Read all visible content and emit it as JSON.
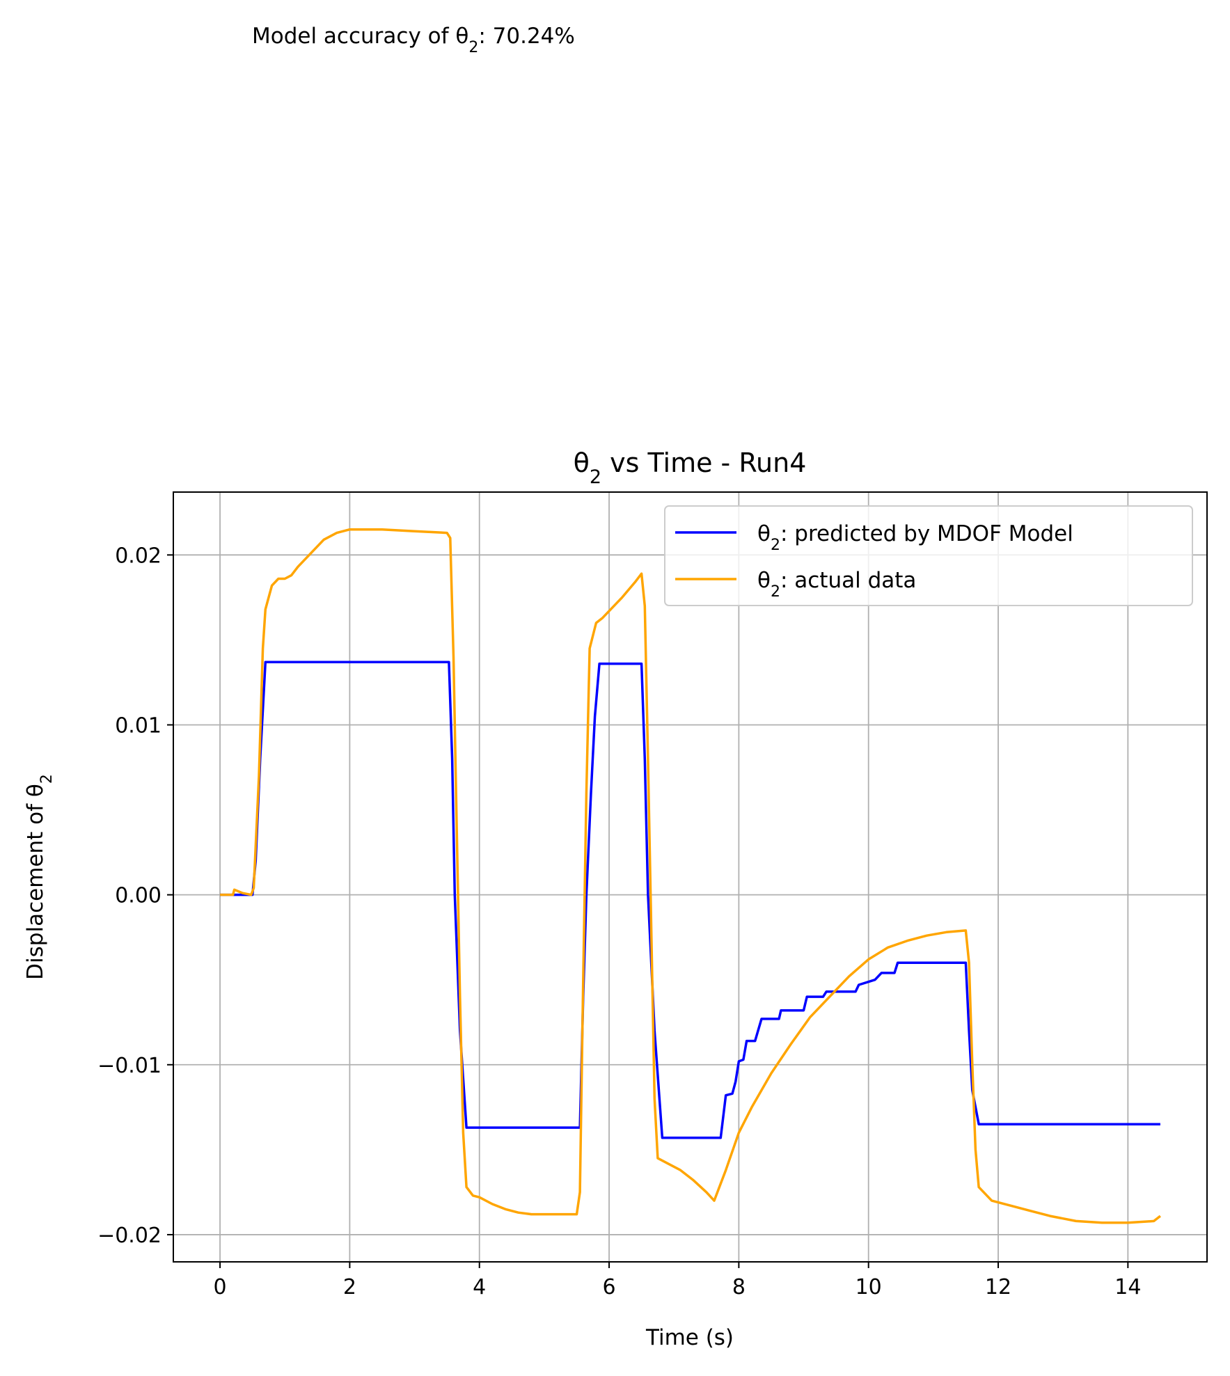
{
  "chart_data": {
    "type": "line",
    "title_prefix": "θ",
    "title_sub": "2",
    "title_suffix": " vs Time - Run4",
    "annotation_prefix": "Model accuracy of θ",
    "annotation_sub": "2",
    "annotation_suffix": ": 70.24%",
    "xlabel": "Time (s)",
    "ylabel_prefix": "Displacement of θ",
    "ylabel_sub": "2",
    "xlim": [
      -0.72,
      15.22
    ],
    "ylim": [
      -0.0216,
      0.0237
    ],
    "xticks": [
      0,
      2,
      4,
      6,
      8,
      10,
      12,
      14
    ],
    "xtick_labels": [
      "0",
      "2",
      "4",
      "6",
      "8",
      "10",
      "12",
      "14"
    ],
    "yticks": [
      -0.02,
      -0.01,
      0.0,
      0.01,
      0.02
    ],
    "ytick_labels": [
      "−0.02",
      "−0.01",
      "0.00",
      "0.01",
      "0.02"
    ],
    "grid": true,
    "legend_position": "upper-right",
    "series": [
      {
        "name_prefix": "θ",
        "name_sub": "2",
        "name_suffix": ": predicted by MDOF Model",
        "color": "#0000ff",
        "points": [
          [
            0,
            0
          ],
          [
            0.5,
            0
          ],
          [
            0.55,
            0.002
          ],
          [
            0.62,
            0.008
          ],
          [
            0.7,
            0.0137
          ],
          [
            3.53,
            0.0137
          ],
          [
            3.58,
            0.008
          ],
          [
            3.62,
            0
          ],
          [
            3.7,
            -0.008
          ],
          [
            3.8,
            -0.0137
          ],
          [
            5.55,
            -0.0137
          ],
          [
            5.6,
            -0.006
          ],
          [
            5.65,
            0
          ],
          [
            5.72,
            0.006
          ],
          [
            5.78,
            0.0105
          ],
          [
            5.85,
            0.0136
          ],
          [
            6.5,
            0.0136
          ],
          [
            6.55,
            0.008
          ],
          [
            6.6,
            0
          ],
          [
            6.7,
            -0.008
          ],
          [
            6.82,
            -0.0143
          ],
          [
            7.72,
            -0.0143
          ],
          [
            7.8,
            -0.0118
          ],
          [
            7.9,
            -0.0117
          ],
          [
            7.95,
            -0.011
          ],
          [
            8.0,
            -0.0098
          ],
          [
            8.07,
            -0.0097
          ],
          [
            8.12,
            -0.0086
          ],
          [
            8.25,
            -0.0086
          ],
          [
            8.35,
            -0.0073
          ],
          [
            8.62,
            -0.0073
          ],
          [
            8.65,
            -0.0068
          ],
          [
            9.0,
            -0.0068
          ],
          [
            9.05,
            -0.006
          ],
          [
            9.3,
            -0.006
          ],
          [
            9.35,
            -0.0057
          ],
          [
            9.8,
            -0.0057
          ],
          [
            9.85,
            -0.0053
          ],
          [
            10.1,
            -0.005
          ],
          [
            10.2,
            -0.0046
          ],
          [
            10.4,
            -0.0046
          ],
          [
            10.45,
            -0.004
          ],
          [
            11.5,
            -0.004
          ],
          [
            11.55,
            -0.008
          ],
          [
            11.6,
            -0.0115
          ],
          [
            11.7,
            -0.0135
          ],
          [
            14.5,
            -0.0135
          ]
        ]
      },
      {
        "name_prefix": "θ",
        "name_sub": "2",
        "name_suffix": ": actual data",
        "color": "#ffa500",
        "points": [
          [
            0,
            0
          ],
          [
            0.2,
            0
          ],
          [
            0.22,
            0.0003
          ],
          [
            0.35,
            0.0001
          ],
          [
            0.48,
            0
          ],
          [
            0.52,
            0.0004
          ],
          [
            0.6,
            0.007
          ],
          [
            0.66,
            0.0145
          ],
          [
            0.7,
            0.0168
          ],
          [
            0.8,
            0.0182
          ],
          [
            0.9,
            0.0186
          ],
          [
            1.0,
            0.0186
          ],
          [
            1.1,
            0.0188
          ],
          [
            1.2,
            0.0193
          ],
          [
            1.4,
            0.0201
          ],
          [
            1.6,
            0.0209
          ],
          [
            1.8,
            0.0213
          ],
          [
            2.0,
            0.0215
          ],
          [
            2.5,
            0.0215
          ],
          [
            3.0,
            0.0214
          ],
          [
            3.5,
            0.0213
          ],
          [
            3.55,
            0.021
          ],
          [
            3.6,
            0.014
          ],
          [
            3.65,
            0.004
          ],
          [
            3.7,
            -0.006
          ],
          [
            3.75,
            -0.014
          ],
          [
            3.8,
            -0.0172
          ],
          [
            3.9,
            -0.0177
          ],
          [
            4.0,
            -0.0178
          ],
          [
            4.2,
            -0.0182
          ],
          [
            4.4,
            -0.0185
          ],
          [
            4.6,
            -0.0187
          ],
          [
            4.8,
            -0.0188
          ],
          [
            5.5,
            -0.0188
          ],
          [
            5.55,
            -0.0175
          ],
          [
            5.6,
            -0.005
          ],
          [
            5.65,
            0.006
          ],
          [
            5.7,
            0.0145
          ],
          [
            5.8,
            0.016
          ],
          [
            5.9,
            0.0163
          ],
          [
            6.0,
            0.0167
          ],
          [
            6.2,
            0.0175
          ],
          [
            6.4,
            0.0184
          ],
          [
            6.5,
            0.0189
          ],
          [
            6.55,
            0.017
          ],
          [
            6.6,
            0.008
          ],
          [
            6.65,
            -0.002
          ],
          [
            6.7,
            -0.012
          ],
          [
            6.75,
            -0.0155
          ],
          [
            6.9,
            -0.0158
          ],
          [
            7.1,
            -0.0162
          ],
          [
            7.3,
            -0.0168
          ],
          [
            7.5,
            -0.0175
          ],
          [
            7.62,
            -0.018
          ],
          [
            7.7,
            -0.0172
          ],
          [
            7.8,
            -0.0162
          ],
          [
            8.0,
            -0.014
          ],
          [
            8.2,
            -0.0125
          ],
          [
            8.5,
            -0.0105
          ],
          [
            8.8,
            -0.0088
          ],
          [
            9.1,
            -0.0072
          ],
          [
            9.4,
            -0.006
          ],
          [
            9.7,
            -0.0048
          ],
          [
            10.0,
            -0.0038
          ],
          [
            10.3,
            -0.0031
          ],
          [
            10.6,
            -0.0027
          ],
          [
            10.9,
            -0.0024
          ],
          [
            11.2,
            -0.0022
          ],
          [
            11.5,
            -0.0021
          ],
          [
            11.55,
            -0.004
          ],
          [
            11.6,
            -0.01
          ],
          [
            11.65,
            -0.015
          ],
          [
            11.7,
            -0.0172
          ],
          [
            11.9,
            -0.018
          ],
          [
            12.2,
            -0.0183
          ],
          [
            12.5,
            -0.0186
          ],
          [
            12.8,
            -0.0189
          ],
          [
            13.2,
            -0.0192
          ],
          [
            13.6,
            -0.0193
          ],
          [
            14.0,
            -0.0193
          ],
          [
            14.4,
            -0.0192
          ],
          [
            14.5,
            -0.0189
          ]
        ]
      }
    ]
  }
}
